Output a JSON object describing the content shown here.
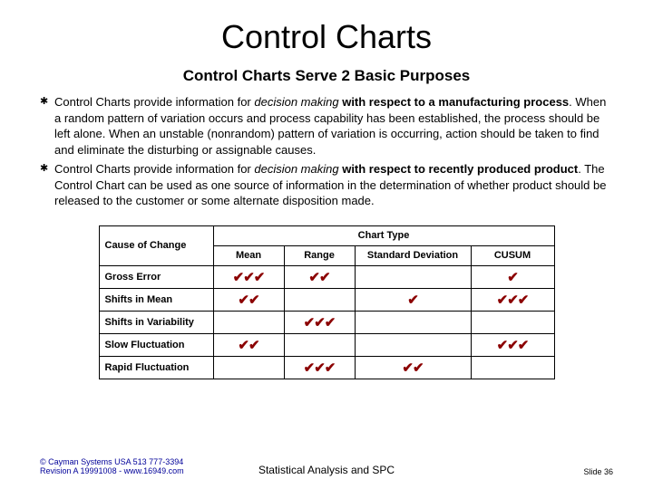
{
  "title": "Control Charts",
  "subtitle": "Control Charts Serve 2 Basic Purposes",
  "bullet_symbol": "✱",
  "bullets": [
    {
      "pre": "Control Charts provide information for ",
      "em": "decision making",
      "bold": " with respect to a manufacturing process",
      "post": ". When a random pattern of variation occurs and process capability has been established, the process should be left alone. When an unstable (nonrandom) pattern of variation is occurring, action should be taken to find and eliminate the disturbing or assignable causes."
    },
    {
      "pre": "Control Charts provide information for ",
      "em": "decision making",
      "bold": " with respect to recently produced product",
      "post": ". The Control Chart can be used as one source of information in the determination of whether product should be released to the customer or some alternate disposition made."
    }
  ],
  "table": {
    "cause_header": "Cause of Change",
    "type_header": "Chart Type",
    "columns": [
      "Mean",
      "Range",
      "Standard Deviation",
      "CUSUM"
    ],
    "check_glyph": "✔",
    "check_color": "#8b0000",
    "rows": [
      {
        "label": "Gross Error",
        "checks": [
          3,
          2,
          0,
          1
        ]
      },
      {
        "label": "Shifts in Mean",
        "checks": [
          2,
          0,
          1,
          3
        ]
      },
      {
        "label": "Shifts in Variability",
        "checks": [
          0,
          3,
          0,
          0
        ]
      },
      {
        "label": "Slow Fluctuation",
        "checks": [
          2,
          0,
          0,
          3
        ]
      },
      {
        "label": "Rapid Fluctuation",
        "checks": [
          0,
          3,
          2,
          0
        ]
      }
    ]
  },
  "footer": {
    "left_line1": "© Cayman Systems USA 513 777-3394",
    "left_line2": "Revision A 19991008 - www.16949.com",
    "center": "Statistical Analysis and SPC",
    "right": "Slide 36"
  }
}
